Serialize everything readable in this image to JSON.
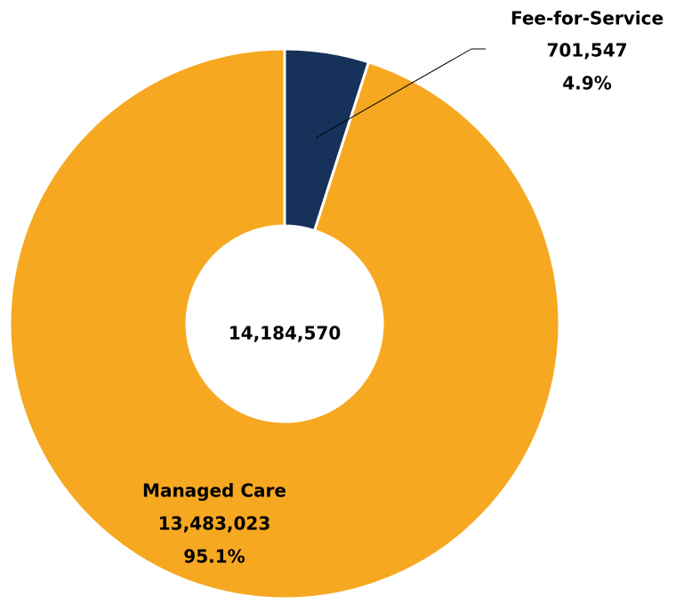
{
  "chart_data": {
    "type": "donut",
    "categories": [
      "Fee-for-Service",
      "Managed Care"
    ],
    "values": [
      701547,
      13483023
    ],
    "value_labels": [
      "701,547",
      "13,483,023"
    ],
    "percent_labels": [
      "4.9%",
      "95.1%"
    ],
    "colors": [
      "#17325a",
      "#f6a821"
    ],
    "center_label": "14,184,570"
  }
}
